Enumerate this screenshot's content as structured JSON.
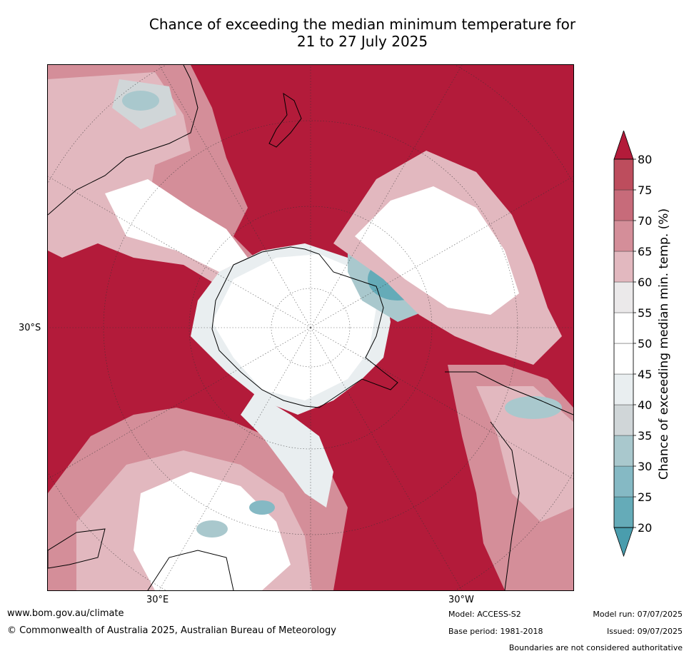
{
  "title": {
    "line1": "Chance of exceeding the median minimum temperature for",
    "line2": "21 to 27 July 2025"
  },
  "map": {
    "projection": "south polar stereographic",
    "latitude_label": "30°S",
    "longitude_labels": [
      "30°E",
      "30°W"
    ],
    "colors": {
      "high": "#b31b3a",
      "ocean_red": "#b31b3a",
      "neutral": "#ffffff",
      "low": "#46a1b0"
    }
  },
  "colorbar": {
    "label": "Chance of exceeding median min. temp. (%)",
    "ticks": [
      "20",
      "25",
      "30",
      "35",
      "40",
      "45",
      "50",
      "55",
      "60",
      "65",
      "70",
      "75",
      "80"
    ],
    "bins": [
      {
        "from": 20,
        "to": 25,
        "color": "#65abb8"
      },
      {
        "from": 25,
        "to": 30,
        "color": "#85b9c4"
      },
      {
        "from": 30,
        "to": 35,
        "color": "#a9c8cd"
      },
      {
        "from": 35,
        "to": 40,
        "color": "#d0d6d8"
      },
      {
        "from": 40,
        "to": 45,
        "color": "#e9eef0"
      },
      {
        "from": 45,
        "to": 50,
        "color": "#ffffff"
      },
      {
        "from": 50,
        "to": 55,
        "color": "#ffffff"
      },
      {
        "from": 55,
        "to": 60,
        "color": "#ebe9ea"
      },
      {
        "from": 60,
        "to": 65,
        "color": "#e2b8bf"
      },
      {
        "from": 65,
        "to": 70,
        "color": "#d48e99"
      },
      {
        "from": 70,
        "to": 75,
        "color": "#c76b7a"
      },
      {
        "from": 75,
        "to": 80,
        "color": "#bd4d5d"
      }
    ],
    "below_color": "#4a9dad",
    "above_color": "#b31b3a"
  },
  "footer": {
    "website": "www.bom.gov.au/climate",
    "copyright": "© Commonwealth of Australia 2025, Australian Bureau of Meteorology",
    "model": "Model: ACCESS-S2",
    "base_period": "Base period: 1981-2018",
    "model_run": "Model run: 07/07/2025",
    "issued": "Issued: 09/07/2025",
    "disclaimer": "Boundaries are not considered authoritative"
  }
}
